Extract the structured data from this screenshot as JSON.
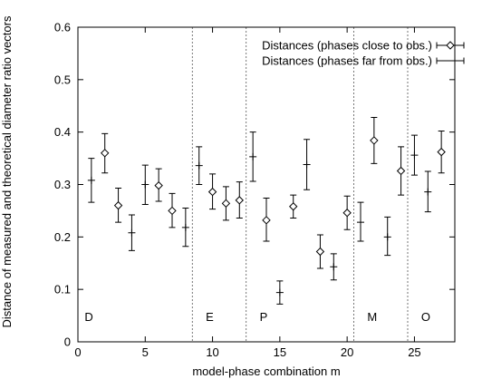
{
  "chart_data": {
    "type": "scatter",
    "title": "",
    "xlabel": "model-phase combination m",
    "ylabel": "Distance of measured and theoretical diameter ratio vectors",
    "xlim": [
      0,
      28
    ],
    "ylim": [
      0,
      0.6
    ],
    "x_ticks": [
      0,
      5,
      10,
      15,
      20,
      25
    ],
    "y_ticks": [
      0,
      0.1,
      0.2,
      0.3,
      0.4,
      0.5,
      0.6
    ],
    "x_tick_labels": [
      "0",
      "5",
      "10",
      "15",
      "20",
      "25"
    ],
    "y_tick_labels": [
      "0",
      "0.1",
      "0.2",
      "0.3",
      "0.4",
      "0.5",
      "0.6"
    ],
    "grid": false,
    "legend": "top-right",
    "separators": [
      8.5,
      12.5,
      20.5,
      24.5
    ],
    "groups": [
      {
        "label": "D",
        "x": 0.5
      },
      {
        "label": "E",
        "x": 9.5
      },
      {
        "label": "P",
        "x": 13.5
      },
      {
        "label": "M",
        "x": 21.5
      },
      {
        "label": "O",
        "x": 25.5
      }
    ],
    "series": [
      {
        "name": "Distances (phases close to obs.)",
        "marker": "diamond",
        "points": [
          {
            "x": 2,
            "y": 0.36,
            "low": 0.322,
            "high": 0.397
          },
          {
            "x": 3,
            "y": 0.26,
            "low": 0.228,
            "high": 0.293
          },
          {
            "x": 6,
            "y": 0.298,
            "low": 0.268,
            "high": 0.33
          },
          {
            "x": 7,
            "y": 0.25,
            "low": 0.218,
            "high": 0.283
          },
          {
            "x": 10,
            "y": 0.286,
            "low": 0.253,
            "high": 0.32
          },
          {
            "x": 11,
            "y": 0.264,
            "low": 0.232,
            "high": 0.296
          },
          {
            "x": 12,
            "y": 0.27,
            "low": 0.236,
            "high": 0.305
          },
          {
            "x": 14,
            "y": 0.232,
            "low": 0.192,
            "high": 0.274
          },
          {
            "x": 16,
            "y": 0.258,
            "low": 0.236,
            "high": 0.28
          },
          {
            "x": 18,
            "y": 0.172,
            "low": 0.14,
            "high": 0.204
          },
          {
            "x": 20,
            "y": 0.246,
            "low": 0.214,
            "high": 0.278
          },
          {
            "x": 22,
            "y": 0.384,
            "low": 0.34,
            "high": 0.428
          },
          {
            "x": 24,
            "y": 0.326,
            "low": 0.28,
            "high": 0.372
          },
          {
            "x": 27,
            "y": 0.362,
            "low": 0.322,
            "high": 0.402
          }
        ]
      },
      {
        "name": "Distances (phases far from obs.)",
        "marker": "plus",
        "points": [
          {
            "x": 1,
            "y": 0.308,
            "low": 0.266,
            "high": 0.35
          },
          {
            "x": 4,
            "y": 0.208,
            "low": 0.174,
            "high": 0.242
          },
          {
            "x": 5,
            "y": 0.3,
            "low": 0.262,
            "high": 0.337
          },
          {
            "x": 8,
            "y": 0.218,
            "low": 0.182,
            "high": 0.255
          },
          {
            "x": 9,
            "y": 0.336,
            "low": 0.3,
            "high": 0.372
          },
          {
            "x": 13,
            "y": 0.353,
            "low": 0.306,
            "high": 0.4
          },
          {
            "x": 15,
            "y": 0.094,
            "low": 0.072,
            "high": 0.116
          },
          {
            "x": 17,
            "y": 0.338,
            "low": 0.29,
            "high": 0.386
          },
          {
            "x": 19,
            "y": 0.143,
            "low": 0.118,
            "high": 0.168
          },
          {
            "x": 21,
            "y": 0.228,
            "low": 0.192,
            "high": 0.266
          },
          {
            "x": 23,
            "y": 0.2,
            "low": 0.165,
            "high": 0.238
          },
          {
            "x": 25,
            "y": 0.356,
            "low": 0.318,
            "high": 0.394
          },
          {
            "x": 26,
            "y": 0.286,
            "low": 0.248,
            "high": 0.325
          }
        ]
      }
    ]
  }
}
